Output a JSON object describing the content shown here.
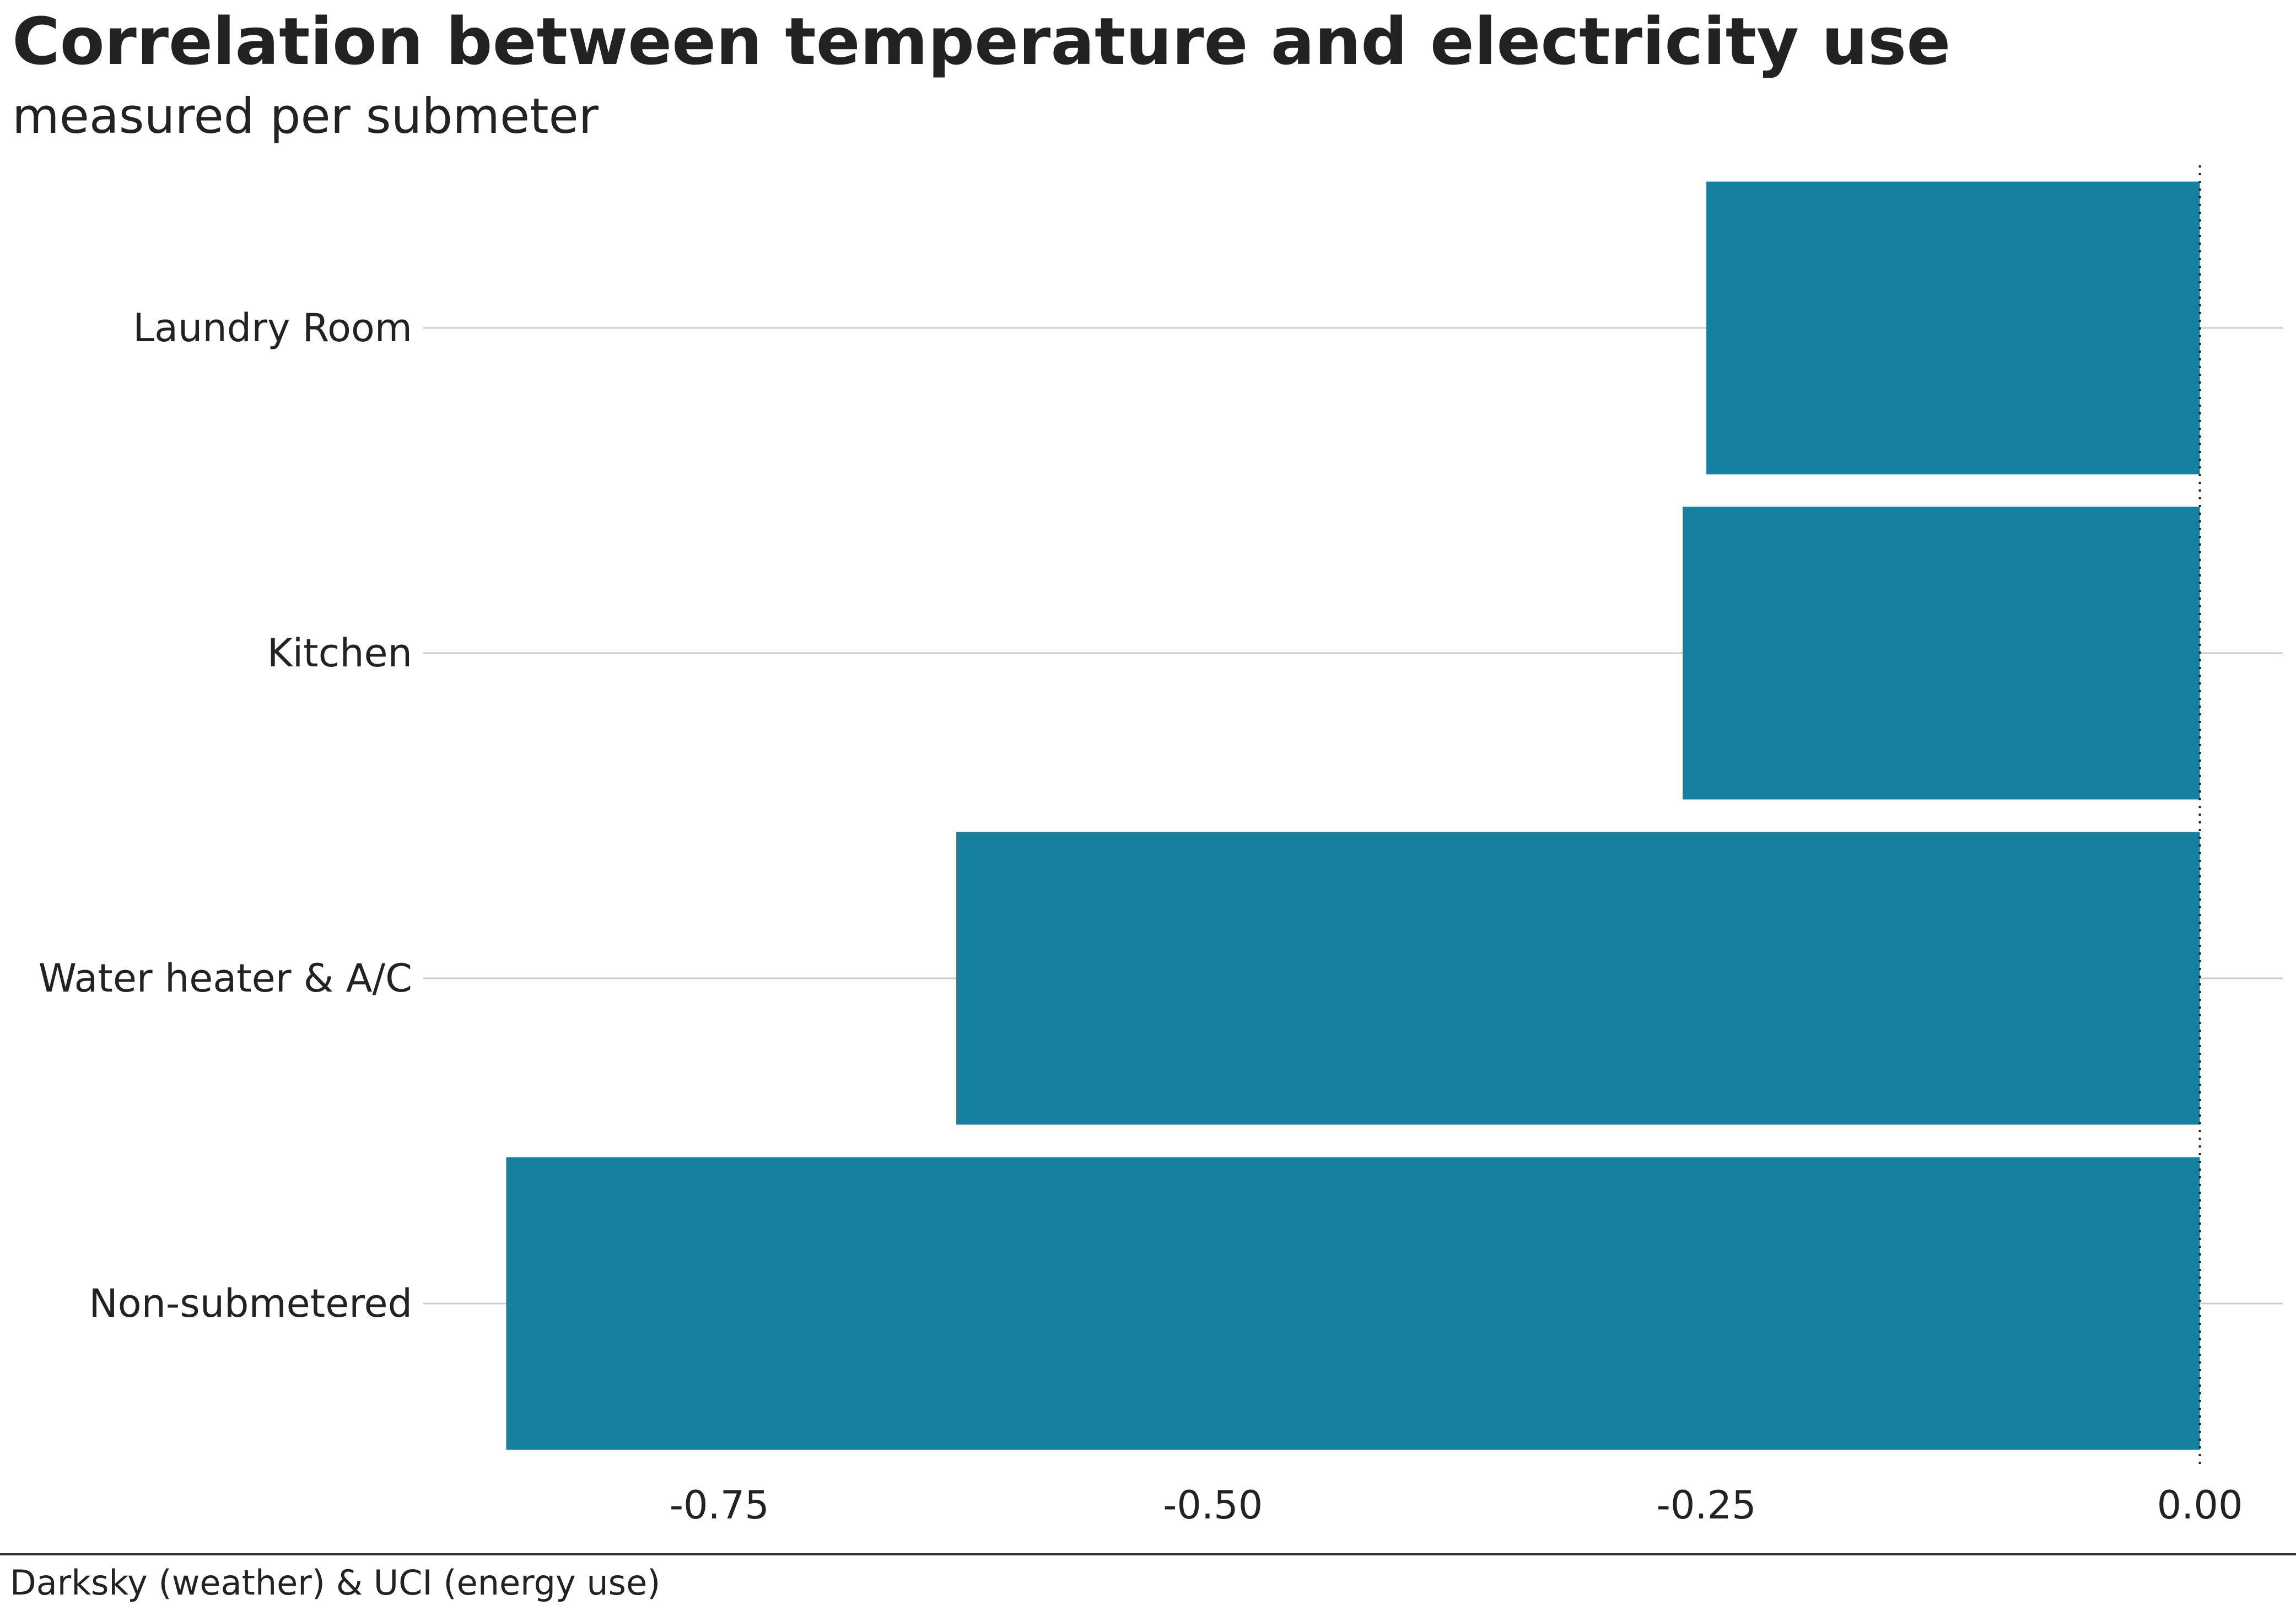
{
  "chart_data": {
    "type": "bar",
    "orientation": "horizontal",
    "title": "Correlation between temperature and electricity use",
    "subtitle": "measured per submeter",
    "source": "Darksky (weather) & UCI (energy use)",
    "categories": [
      "Laundry Room",
      "Kitchen",
      "Water heater & A/C",
      "Non-submetered"
    ],
    "values": [
      -0.25,
      -0.262,
      -0.63,
      -0.858
    ],
    "xlim": [
      -0.9,
      0.042
    ],
    "xticks": [
      -0.75,
      -0.5,
      -0.25,
      0.0
    ],
    "xtick_labels": [
      "-0.75",
      "-0.50",
      "-0.25",
      "0.00"
    ],
    "xlabel": "",
    "ylabel": "",
    "grid": "horizontal gridlines at each category",
    "reference_line": {
      "x": 0,
      "style": "dotted"
    },
    "legend": "none",
    "bar_color": "#1580A0",
    "grid_color": "#CCCCCC"
  }
}
